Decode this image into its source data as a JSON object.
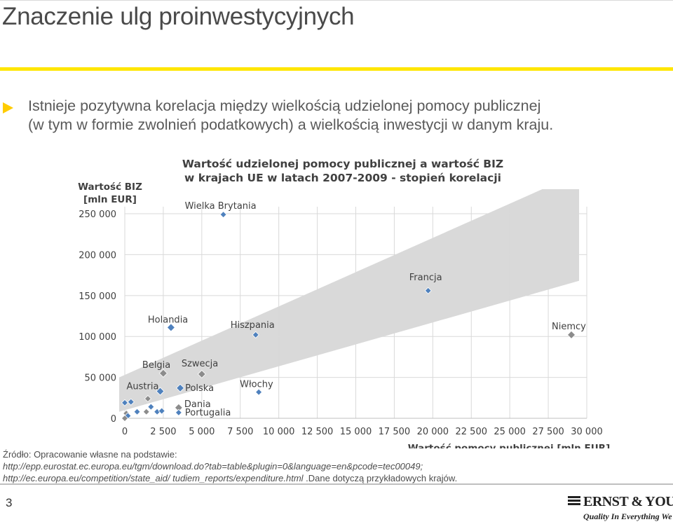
{
  "slide": {
    "title": "Znaczenie ulg proinwestycyjnych",
    "bullet_line1": "Istnieje pozytywna korelacja między wielkością udzielonej pomocy publicznej",
    "bullet_line2": "(w tym w formie zwolnień podatkowych) a wielkością inwestycji w danym kraju.",
    "source_label": "Źródło: Opracowanie własne na podstawie:",
    "source_url1": "http://epp.eurostat.ec.europa.eu/tgm/download.do?tab=table&plugin=0&language=en&pcode=tec00049;",
    "source_url2": "http://ec.europa.eu/competition/state_aid/ tudiem_reports/expenditure.html",
    "source_tail": " .Dane dotyczą przykładowych krajów.",
    "page_number": "3",
    "logo_word": "ERNST & YOUNG",
    "logo_tagline": "Quality In Everything We Do"
  },
  "chart_data": {
    "type": "scatter",
    "title_line1": "Wartość udzielonej pomocy publicznej a wartość BIZ",
    "title_line2": "w krajach UE w latach 2007-2009 - stopień korelacji",
    "ylabel_line1": "Wartość BIZ",
    "ylabel_line2": "[mln EUR]",
    "xlabel": "Wartość pomocy publicznej [mln EUR]",
    "xlim": [
      0,
      30000
    ],
    "ylim": [
      0,
      250000
    ],
    "x_ticks": [
      "0",
      "2 500",
      "5 000",
      "7 500",
      "10 000",
      "12 500",
      "15 000",
      "17 500",
      "20 000",
      "22 500",
      "25 000",
      "27 500",
      "30 000"
    ],
    "y_ticks": [
      "0",
      "50 000",
      "100 000",
      "150 000",
      "200 000",
      "250 000"
    ],
    "grid": true,
    "band": {
      "lower": [
        [
          0,
          8000
        ],
        [
          29500,
          168000
        ]
      ],
      "upper": [
        [
          0,
          50000
        ],
        [
          29500,
          300000
        ]
      ]
    },
    "colors": {
      "point": "#4f81bd",
      "point_gray": "#8c8c8c",
      "band": "#d9d9d9",
      "grid": "#d9d9d9"
    },
    "points": [
      {
        "label": "Wielka Brytania",
        "x": 6400,
        "y": 249000
      },
      {
        "label": "Francja",
        "x": 19700,
        "y": 156000
      },
      {
        "label": "Holandia",
        "x": 3000,
        "y": 111000
      },
      {
        "label": "Hiszpania",
        "x": 8500,
        "y": 102000
      },
      {
        "label": "Niemcy",
        "x": 29000,
        "y": 102000,
        "gray": true
      },
      {
        "label": "Belgia",
        "x": 2500,
        "y": 55000,
        "gray": true
      },
      {
        "label": "Szwecja",
        "x": 5000,
        "y": 54000,
        "gray": true
      },
      {
        "label": "Polska",
        "x": 3600,
        "y": 37000
      },
      {
        "label": "Austria",
        "x": 2300,
        "y": 33000
      },
      {
        "label": "Włochy",
        "x": 8700,
        "y": 32000
      },
      {
        "label": "Dania",
        "x": 3500,
        "y": 13000,
        "gray": true
      },
      {
        "label": "Portugalia",
        "x": 3500,
        "y": 7000
      },
      {
        "label": "",
        "x": 0,
        "y": 19000
      },
      {
        "label": "",
        "x": 400,
        "y": 20000
      },
      {
        "label": "",
        "x": 1500,
        "y": 24000,
        "gray": true
      },
      {
        "label": "",
        "x": 1700,
        "y": 14000
      },
      {
        "label": "",
        "x": 800,
        "y": 8000
      },
      {
        "label": "",
        "x": 1400,
        "y": 8000,
        "gray": true
      },
      {
        "label": "",
        "x": 2100,
        "y": 8000
      },
      {
        "label": "",
        "x": 2400,
        "y": 9000
      },
      {
        "label": "",
        "x": 100,
        "y": 6000,
        "gray": true
      },
      {
        "label": "",
        "x": 200,
        "y": 3000
      },
      {
        "label": "",
        "x": 0,
        "y": 0,
        "gray": true
      }
    ]
  }
}
